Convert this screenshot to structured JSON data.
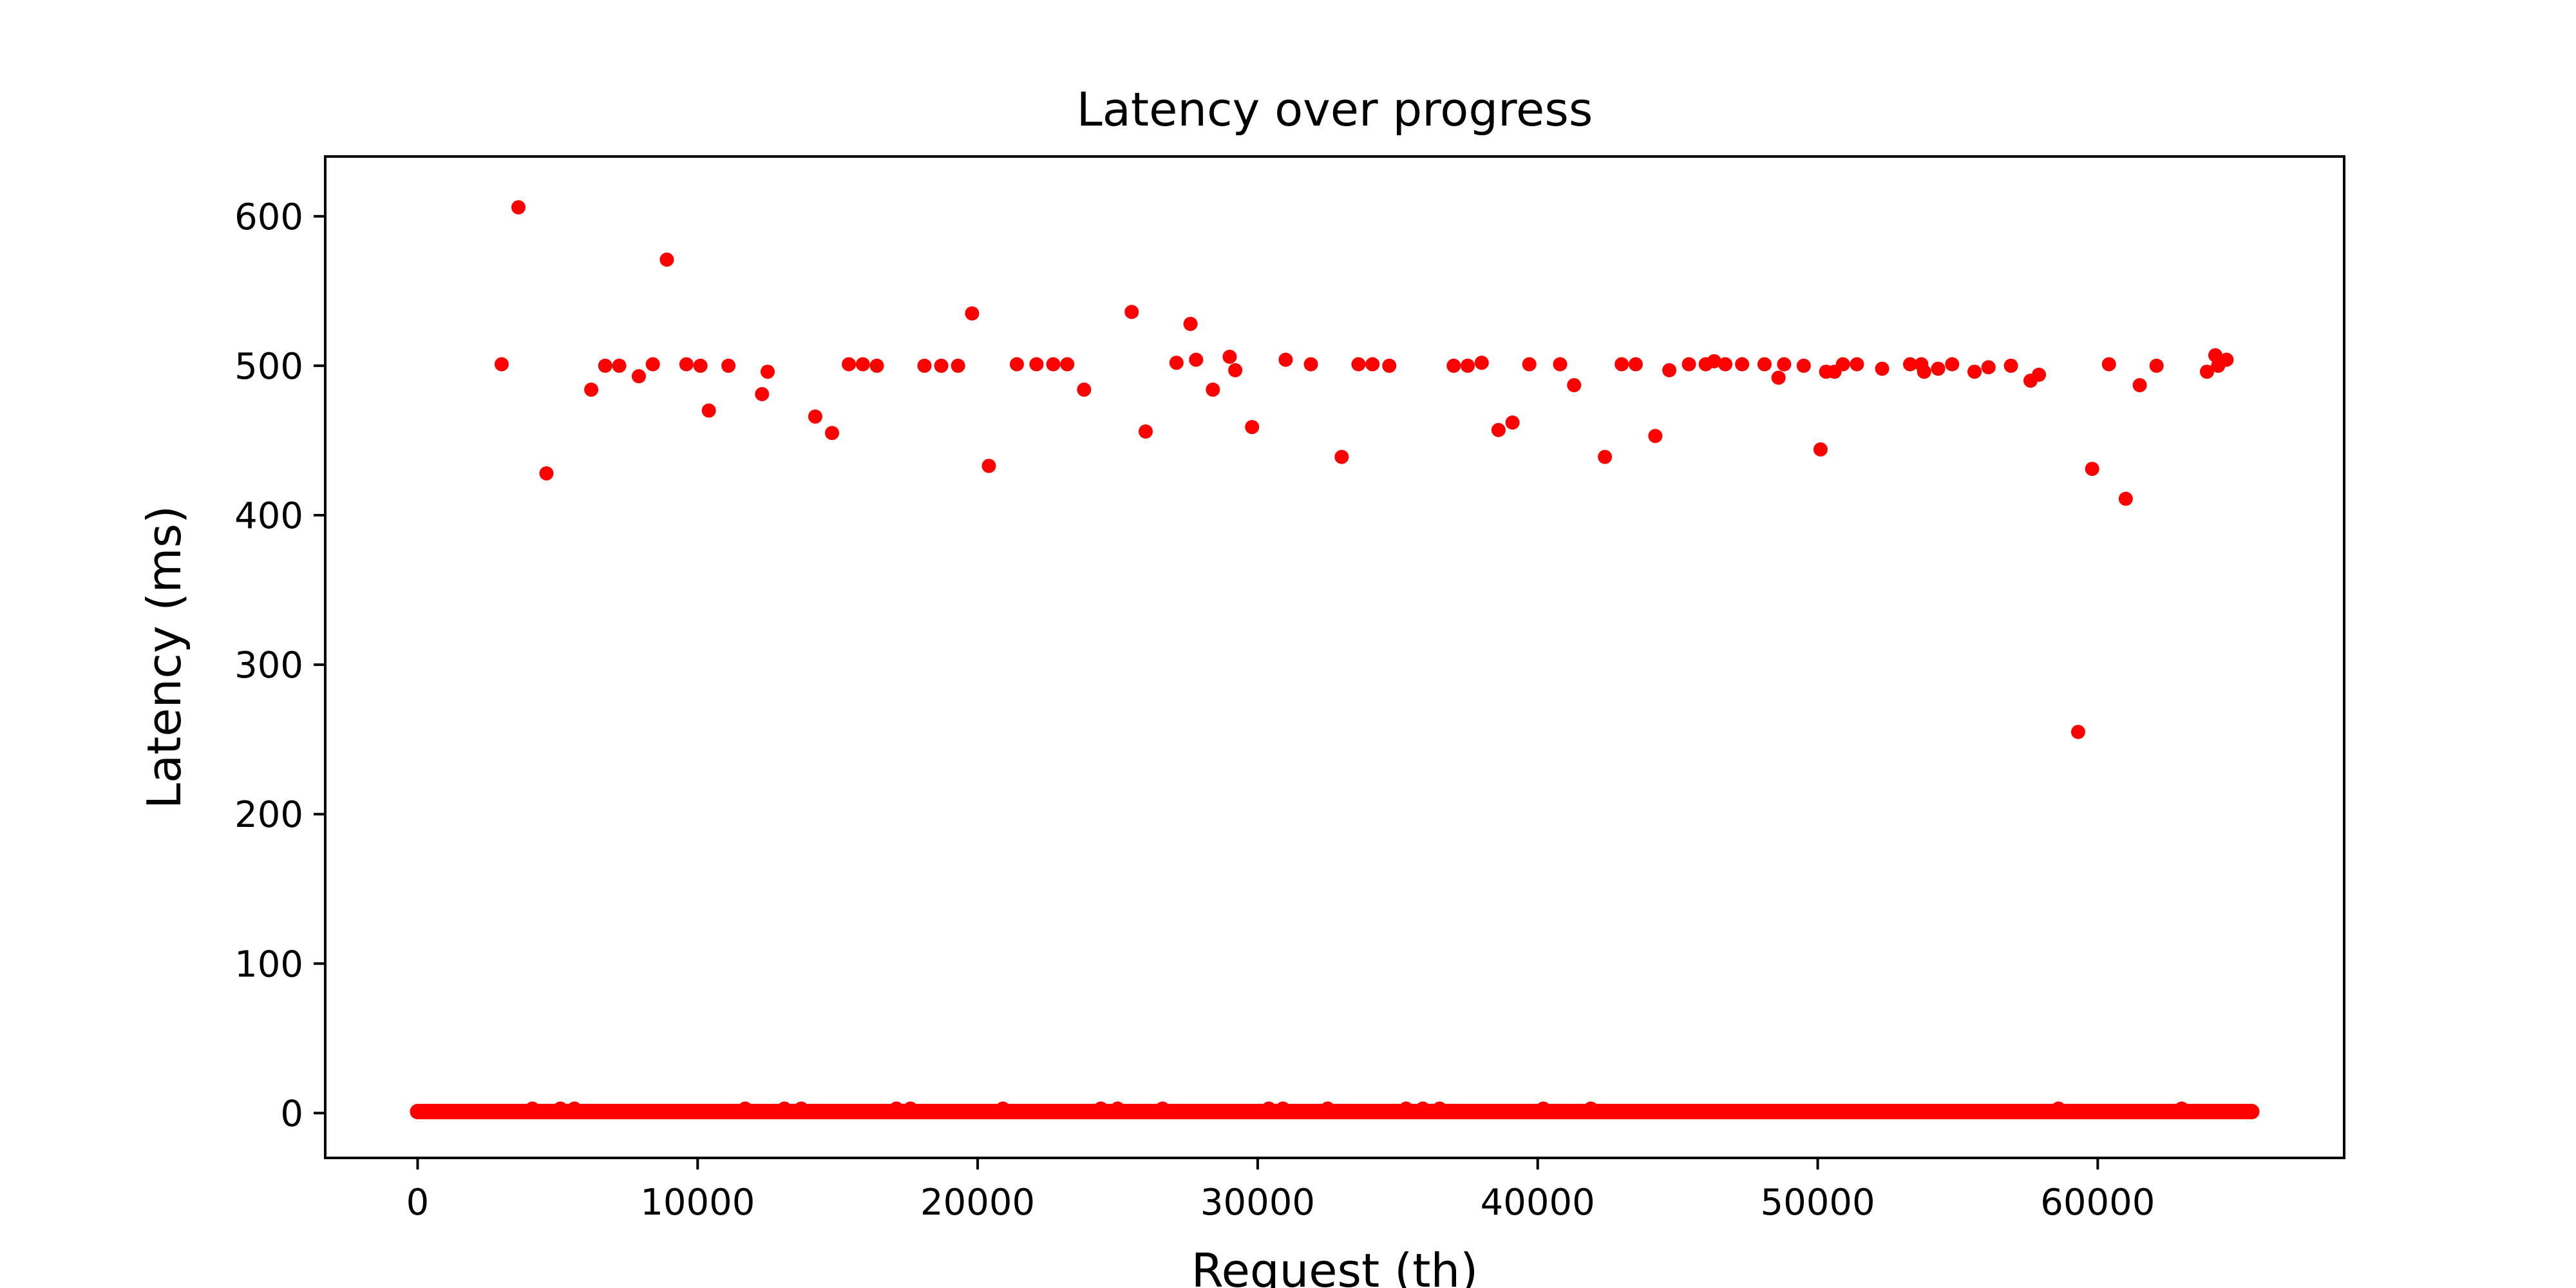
{
  "chart_data": {
    "type": "scatter",
    "title": "Latency over progress",
    "xlabel": "Request (th)",
    "ylabel": "Latency (ms)",
    "xlim": [
      -3300,
      68800
    ],
    "ylim": [
      -30,
      640
    ],
    "x_ticks": [
      0,
      10000,
      20000,
      30000,
      40000,
      50000,
      60000
    ],
    "y_ticks": [
      0,
      100,
      200,
      300,
      400,
      500,
      600
    ],
    "grid": false,
    "legend": "none",
    "marker_color": "#ff0000",
    "baseline_band": {
      "x_start": 0,
      "x_end": 65500,
      "y": 1
    },
    "points": [
      [
        3000,
        501
      ],
      [
        3600,
        606
      ],
      [
        4100,
        3
      ],
      [
        4600,
        428
      ],
      [
        5100,
        3
      ],
      [
        5600,
        3
      ],
      [
        6200,
        484
      ],
      [
        6700,
        500
      ],
      [
        7200,
        500
      ],
      [
        7900,
        493
      ],
      [
        8400,
        501
      ],
      [
        8900,
        571
      ],
      [
        9600,
        501
      ],
      [
        10100,
        500
      ],
      [
        10400,
        470
      ],
      [
        11100,
        500
      ],
      [
        11700,
        3
      ],
      [
        12300,
        481
      ],
      [
        12500,
        496
      ],
      [
        13100,
        3
      ],
      [
        13700,
        3
      ],
      [
        14200,
        466
      ],
      [
        14800,
        455
      ],
      [
        15400,
        501
      ],
      [
        15900,
        501
      ],
      [
        16400,
        500
      ],
      [
        17100,
        3
      ],
      [
        17600,
        3
      ],
      [
        18100,
        500
      ],
      [
        18700,
        500
      ],
      [
        19300,
        500
      ],
      [
        19800,
        535
      ],
      [
        20400,
        433
      ],
      [
        20900,
        3
      ],
      [
        21400,
        501
      ],
      [
        22100,
        501
      ],
      [
        22700,
        501
      ],
      [
        23200,
        501
      ],
      [
        23800,
        484
      ],
      [
        24400,
        3
      ],
      [
        25000,
        3
      ],
      [
        25500,
        536
      ],
      [
        26000,
        456
      ],
      [
        26600,
        3
      ],
      [
        27100,
        502
      ],
      [
        27600,
        528
      ],
      [
        27800,
        504
      ],
      [
        28400,
        484
      ],
      [
        29000,
        506
      ],
      [
        29200,
        497
      ],
      [
        29800,
        459
      ],
      [
        30400,
        3
      ],
      [
        30900,
        3
      ],
      [
        31000,
        504
      ],
      [
        31900,
        501
      ],
      [
        32500,
        3
      ],
      [
        33000,
        439
      ],
      [
        33600,
        501
      ],
      [
        34100,
        501
      ],
      [
        34700,
        500
      ],
      [
        35300,
        3
      ],
      [
        35900,
        3
      ],
      [
        36500,
        3
      ],
      [
        37000,
        500
      ],
      [
        37500,
        500
      ],
      [
        38000,
        502
      ],
      [
        38600,
        457
      ],
      [
        39100,
        462
      ],
      [
        39700,
        501
      ],
      [
        40200,
        3
      ],
      [
        40800,
        501
      ],
      [
        41300,
        487
      ],
      [
        41900,
        3
      ],
      [
        42400,
        439
      ],
      [
        43000,
        501
      ],
      [
        43500,
        501
      ],
      [
        44200,
        453
      ],
      [
        44700,
        497
      ],
      [
        45400,
        501
      ],
      [
        46000,
        501
      ],
      [
        46300,
        503
      ],
      [
        46700,
        501
      ],
      [
        47300,
        501
      ],
      [
        48100,
        501
      ],
      [
        48600,
        492
      ],
      [
        48800,
        501
      ],
      [
        49500,
        500
      ],
      [
        50100,
        444
      ],
      [
        50300,
        496
      ],
      [
        50600,
        496
      ],
      [
        50900,
        501
      ],
      [
        51400,
        501
      ],
      [
        52300,
        498
      ],
      [
        53300,
        501
      ],
      [
        53700,
        501
      ],
      [
        53800,
        496
      ],
      [
        54300,
        498
      ],
      [
        54800,
        501
      ],
      [
        55600,
        496
      ],
      [
        56100,
        499
      ],
      [
        56900,
        500
      ],
      [
        57600,
        490
      ],
      [
        57900,
        494
      ],
      [
        58600,
        3
      ],
      [
        59300,
        255
      ],
      [
        59800,
        431
      ],
      [
        60400,
        501
      ],
      [
        61000,
        411
      ],
      [
        61500,
        487
      ],
      [
        62100,
        500
      ],
      [
        63000,
        3
      ],
      [
        63900,
        496
      ],
      [
        64200,
        507
      ],
      [
        64300,
        500
      ],
      [
        64600,
        504
      ]
    ]
  }
}
